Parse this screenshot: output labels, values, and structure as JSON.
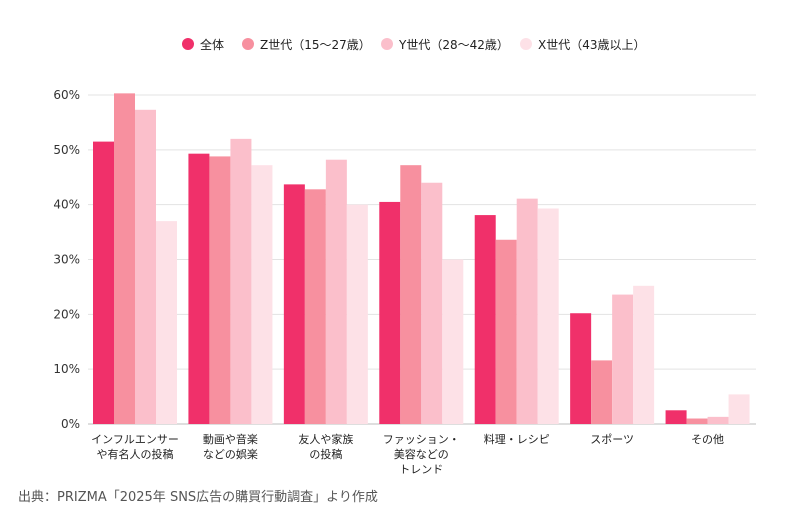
{
  "chart_data": {
    "type": "bar",
    "categories": [
      [
        "インフルエンサー",
        "や有名人の投稿"
      ],
      [
        "動画や音楽",
        "などの娯楽"
      ],
      [
        "友人や家族",
        "の投稿"
      ],
      [
        "ファッション・",
        "美容などの",
        "トレンド"
      ],
      [
        "料理・レシピ"
      ],
      [
        "スポーツ"
      ],
      [
        "その他"
      ]
    ],
    "series": [
      {
        "name": "全体",
        "color": "#f0306a",
        "values": [
          51.5,
          49.3,
          43.7,
          40.5,
          38.1,
          20.2,
          2.5
        ]
      },
      {
        "name": "Z世代（15〜27歳）",
        "color": "#f7909f",
        "values": [
          60.3,
          48.8,
          42.8,
          47.2,
          33.6,
          11.6,
          1.0
        ]
      },
      {
        "name": "Y世代（28〜42歳）",
        "color": "#fbbfcb",
        "values": [
          57.3,
          52.0,
          48.2,
          44.0,
          41.1,
          23.6,
          1.3
        ]
      },
      {
        "name": "X世代（43歳以上）",
        "color": "#fde1e7",
        "values": [
          37.0,
          47.2,
          40.0,
          30.0,
          39.3,
          25.2,
          5.4
        ]
      }
    ],
    "ylim": [
      0,
      60
    ],
    "yticks": [
      "0%",
      "10%",
      "20%",
      "30%",
      "40%",
      "50%",
      "60%"
    ],
    "grid": true,
    "legend": "top"
  },
  "source": "出典：PRIZMA「2025年 SNS広告の購買行動調査」より作成"
}
